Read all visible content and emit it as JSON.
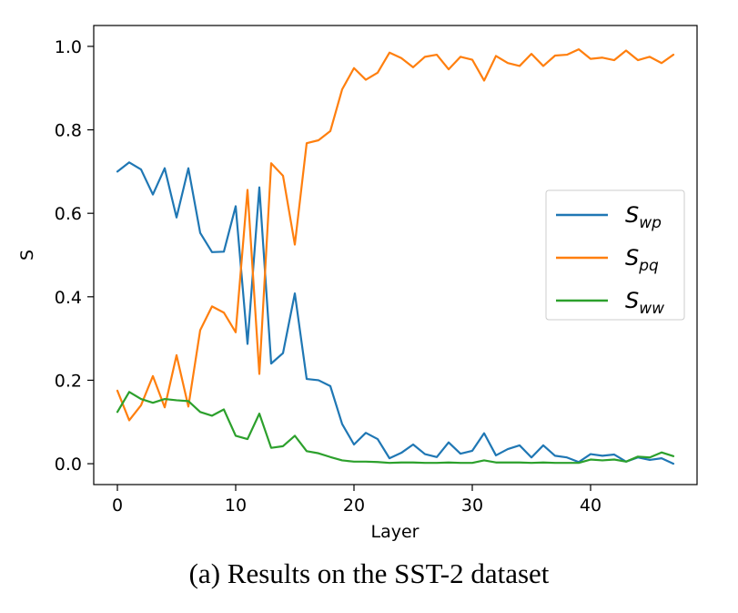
{
  "chart_data": {
    "type": "line",
    "title": "",
    "xlabel": "Layer",
    "ylabel": "S",
    "xlim": [
      -2,
      49
    ],
    "ylim": [
      -0.05,
      1.05
    ],
    "xticks": [
      0,
      10,
      20,
      30,
      40
    ],
    "yticks": [
      0.0,
      0.2,
      0.4,
      0.6,
      0.8,
      1.0
    ],
    "xtick_labels": [
      "0",
      "10",
      "20",
      "30",
      "40"
    ],
    "ytick_labels": [
      "0.0",
      "0.2",
      "0.4",
      "0.6",
      "0.8",
      "1.0"
    ],
    "grid": false,
    "legend_position": "center-right",
    "x": [
      0,
      1,
      2,
      3,
      4,
      5,
      6,
      7,
      8,
      9,
      10,
      11,
      12,
      13,
      14,
      15,
      16,
      17,
      18,
      19,
      20,
      21,
      22,
      23,
      24,
      25,
      26,
      27,
      28,
      29,
      30,
      31,
      32,
      33,
      34,
      35,
      36,
      37,
      38,
      39,
      40,
      41,
      42,
      43,
      44,
      45,
      46,
      47
    ],
    "series": [
      {
        "name": "S_wp",
        "label_main": "S",
        "label_sub": "wp",
        "color": "#1f77b4",
        "values": [
          0.7,
          0.722,
          0.705,
          0.645,
          0.708,
          0.59,
          0.708,
          0.553,
          0.507,
          0.508,
          0.617,
          0.287,
          0.662,
          0.24,
          0.265,
          0.408,
          0.203,
          0.2,
          0.186,
          0.095,
          0.046,
          0.074,
          0.059,
          0.013,
          0.026,
          0.046,
          0.023,
          0.016,
          0.051,
          0.024,
          0.031,
          0.073,
          0.02,
          0.035,
          0.044,
          0.015,
          0.044,
          0.019,
          0.015,
          0.004,
          0.023,
          0.019,
          0.022,
          0.005,
          0.015,
          0.009,
          0.013,
          0.0
        ]
      },
      {
        "name": "S_pq",
        "label_main": "S",
        "label_sub": "pq",
        "color": "#ff7f0e",
        "values": [
          0.175,
          0.104,
          0.14,
          0.21,
          0.135,
          0.26,
          0.137,
          0.32,
          0.377,
          0.362,
          0.315,
          0.656,
          0.215,
          0.72,
          0.69,
          0.525,
          0.768,
          0.775,
          0.797,
          0.897,
          0.948,
          0.92,
          0.937,
          0.985,
          0.972,
          0.95,
          0.975,
          0.98,
          0.945,
          0.975,
          0.968,
          0.918,
          0.977,
          0.96,
          0.953,
          0.982,
          0.953,
          0.978,
          0.98,
          0.993,
          0.97,
          0.973,
          0.967,
          0.99,
          0.967,
          0.975,
          0.96,
          0.98
        ]
      },
      {
        "name": "S_ww",
        "label_main": "S",
        "label_sub": "ww",
        "color": "#2ca02c",
        "values": [
          0.124,
          0.172,
          0.155,
          0.146,
          0.155,
          0.152,
          0.15,
          0.124,
          0.115,
          0.13,
          0.067,
          0.059,
          0.12,
          0.038,
          0.042,
          0.067,
          0.03,
          0.025,
          0.016,
          0.008,
          0.005,
          0.005,
          0.004,
          0.002,
          0.003,
          0.003,
          0.002,
          0.002,
          0.003,
          0.002,
          0.002,
          0.008,
          0.003,
          0.003,
          0.003,
          0.002,
          0.003,
          0.002,
          0.002,
          0.002,
          0.01,
          0.008,
          0.01,
          0.005,
          0.017,
          0.015,
          0.027,
          0.018
        ]
      }
    ]
  },
  "caption": "(a) Results on the SST-2 dataset"
}
